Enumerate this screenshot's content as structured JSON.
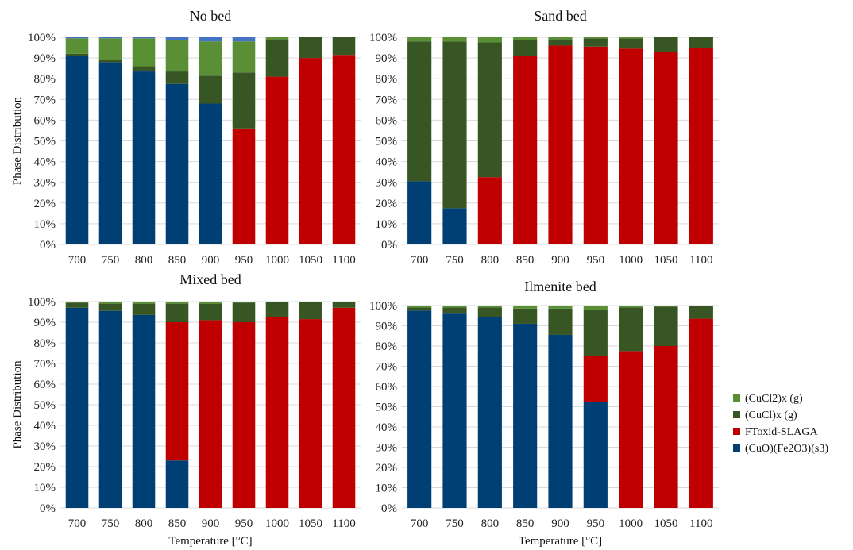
{
  "chart_data": {
    "type": "bar",
    "stacked": true,
    "normalized": true,
    "x": [
      700,
      750,
      800,
      850,
      900,
      950,
      1000,
      1050,
      1100
    ],
    "xlabel": "Temperature [°C]",
    "ylabel": "Phase Distribution",
    "ylim": [
      0,
      100
    ],
    "yticks": [
      "0%",
      "10%",
      "20%",
      "30%",
      "40%",
      "50%",
      "60%",
      "70%",
      "80%",
      "90%",
      "100%"
    ],
    "legend": {
      "position": "right",
      "entries": [
        "(CuCl2)x (g)",
        "(CuCl)x (g)",
        "FToxid-SLAGA",
        "(CuO)(Fe2O3)(s3)"
      ]
    },
    "colors": {
      "(CuO)(Fe2O3)(s3)": "#003f74",
      "FToxid-SLAGA": "#c00000",
      "(CuCl)x (g)": "#375623",
      "(CuCl2)x (g)": "#5b8f35",
      "other": "#4472c4"
    },
    "panels": [
      {
        "title": "No bed",
        "series": [
          {
            "name": "(CuO)(Fe2O3)(s3)",
            "values": [
              91,
              88,
              83.5,
              77.5,
              68,
              0,
              0,
              0,
              0
            ]
          },
          {
            "name": "FToxid-SLAGA",
            "values": [
              0,
              0,
              0,
              0,
              0,
              56,
              81,
              90,
              91.5
            ]
          },
          {
            "name": "(CuCl)x (g)",
            "values": [
              1,
              1,
              2.5,
              6,
              13.5,
              27,
              18,
              10,
              8.5
            ]
          },
          {
            "name": "(CuCl2)x (g)",
            "values": [
              7.5,
              10.5,
              13.5,
              15,
              16.5,
              15,
              1,
              0,
              0
            ]
          },
          {
            "name": "",
            "values": [
              0.5,
              0.5,
              0.5,
              1.5,
              2,
              2,
              0,
              0,
              0
            ]
          }
        ]
      },
      {
        "title": "Sand bed",
        "series": [
          {
            "name": "(CuO)(Fe2O3)(s3)",
            "values": [
              30.5,
              17.5,
              0,
              0,
              0,
              0,
              0,
              0,
              0
            ]
          },
          {
            "name": "FToxid-SLAGA",
            "values": [
              0,
              0,
              32.5,
              91,
              96,
              95.5,
              94.5,
              93,
              95
            ]
          },
          {
            "name": "(CuCl)x (g)",
            "values": [
              67.5,
              80.5,
              65,
              7.5,
              3,
              4,
              5,
              7,
              5
            ]
          },
          {
            "name": "(CuCl2)x (g)",
            "values": [
              2,
              2,
              2.5,
              1.5,
              1,
              0.5,
              0.5,
              0,
              0
            ]
          }
        ]
      },
      {
        "title": "Mixed bed",
        "series": [
          {
            "name": "(CuO)(Fe2O3)(s3)",
            "values": [
              97,
              95.5,
              93.5,
              23,
              0,
              0,
              0,
              0,
              0
            ]
          },
          {
            "name": "FToxid-SLAGA",
            "values": [
              0,
              0,
              0,
              67,
              91,
              90,
              92.5,
              91.5,
              97
            ]
          },
          {
            "name": "(CuCl)x (g)",
            "values": [
              2.5,
              3.5,
              5.5,
              9,
              8,
              9.5,
              7.5,
              8.5,
              3
            ]
          },
          {
            "name": "(CuCl2)x (g)",
            "values": [
              0.5,
              1,
              1,
              1,
              1,
              0.5,
              0,
              0,
              0
            ]
          }
        ]
      },
      {
        "title": "Ilmenite bed",
        "series": [
          {
            "name": "(CuO)(Fe2O3)(s3)",
            "values": [
              97.5,
              96,
              94.5,
              91,
              85.5,
              52.5,
              0,
              0,
              0
            ]
          },
          {
            "name": "FToxid-SLAGA",
            "values": [
              0,
              0,
              0,
              0,
              0,
              22.5,
              77.5,
              80,
              93.5
            ]
          },
          {
            "name": "(CuCl)x (g)",
            "values": [
              1.5,
              3,
              4.5,
              7.5,
              13,
              23,
              21.5,
              19.5,
              6.5
            ]
          },
          {
            "name": "(CuCl2)x (g)",
            "values": [
              1,
              1,
              1,
              1.5,
              1.5,
              2,
              1,
              0.5,
              0
            ]
          }
        ]
      }
    ]
  }
}
